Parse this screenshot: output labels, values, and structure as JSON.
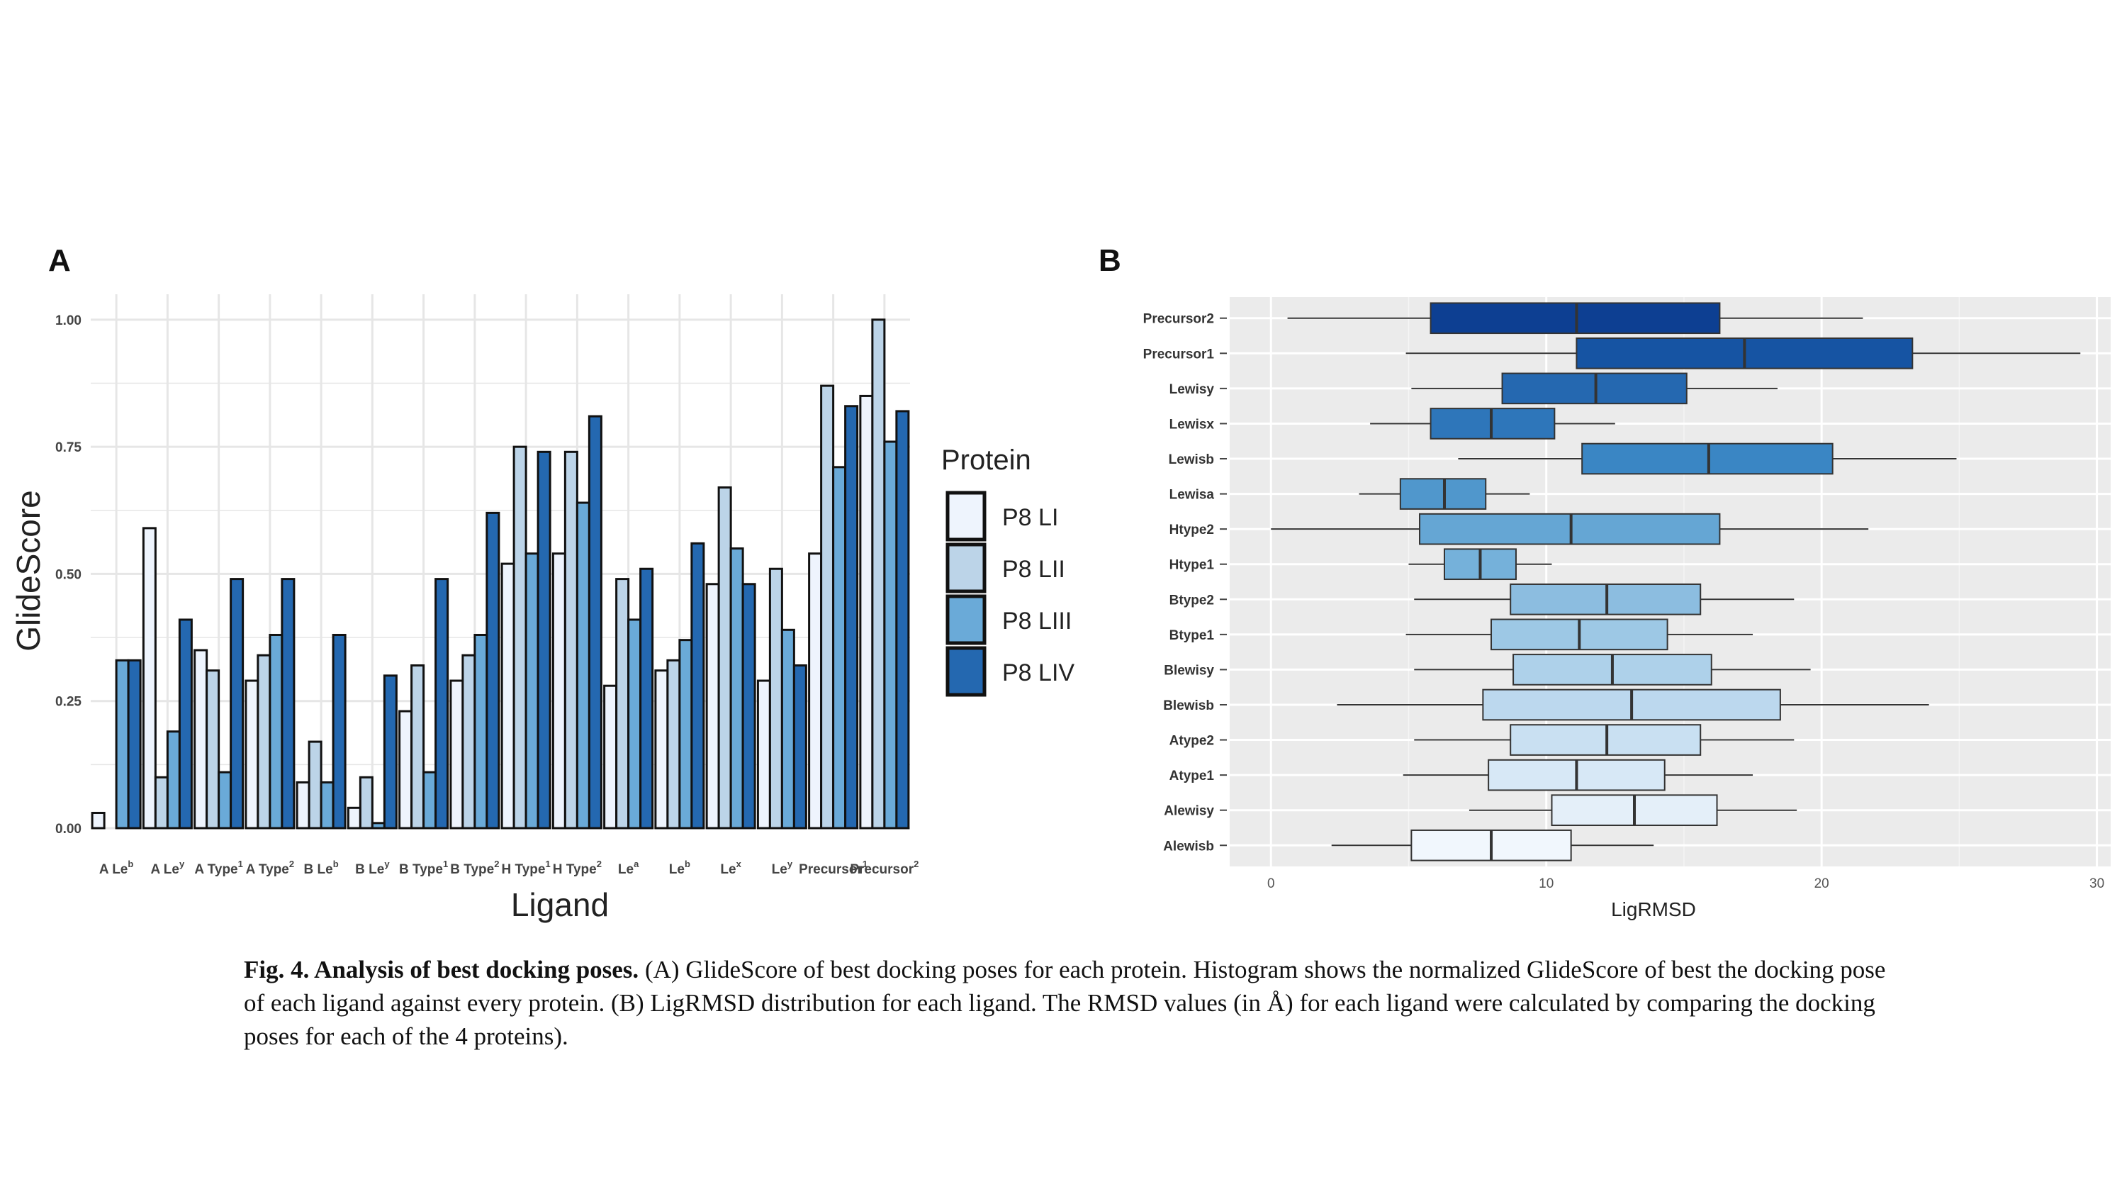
{
  "panels": {
    "a": "A",
    "b": "B"
  },
  "legend": {
    "title": "Protein",
    "items": [
      {
        "label": "P8 LI",
        "color": "#eef4fd"
      },
      {
        "label": "P8 LII",
        "color": "#bcd4e8"
      },
      {
        "label": "P8 LIII",
        "color": "#6aaad8"
      },
      {
        "label": "P8 LIV",
        "color": "#2468b0"
      }
    ]
  },
  "chart_data": [
    {
      "type": "bar",
      "xlabel": "Ligand",
      "ylabel": "GlideScore",
      "ylim": [
        0,
        1.05
      ],
      "yticks": [
        "0.00",
        "0.25",
        "0.50",
        "0.75",
        "1.00"
      ],
      "grid": true,
      "legend_position": "right",
      "categories": [
        {
          "base": "A Le",
          "sup": "b"
        },
        {
          "base": "A Le",
          "sup": "y"
        },
        {
          "base": "A Type",
          "sup": "1"
        },
        {
          "base": "A Type",
          "sup": "2"
        },
        {
          "base": "B Le",
          "sup": "b"
        },
        {
          "base": "B Le",
          "sup": "y"
        },
        {
          "base": "B Type",
          "sup": "1"
        },
        {
          "base": "B Type",
          "sup": "2"
        },
        {
          "base": "H Type",
          "sup": "1"
        },
        {
          "base": "H Type",
          "sup": "2"
        },
        {
          "base": "Le",
          "sup": "a"
        },
        {
          "base": "Le",
          "sup": "b"
        },
        {
          "base": "Le",
          "sup": "x"
        },
        {
          "base": "Le",
          "sup": "y"
        },
        {
          "base": "Precursor",
          "sup": "1"
        },
        {
          "base": "Precursor",
          "sup": "2"
        }
      ],
      "series": [
        {
          "name": "P8 LI",
          "values": [
            0.03,
            0.59,
            0.35,
            0.29,
            0.09,
            0.04,
            0.23,
            0.29,
            0.52,
            0.54,
            0.28,
            0.31,
            0.48,
            0.29,
            0.54,
            0.85
          ]
        },
        {
          "name": "P8 LII",
          "values": [
            0.0,
            0.1,
            0.31,
            0.34,
            0.17,
            0.1,
            0.32,
            0.34,
            0.75,
            0.74,
            0.49,
            0.33,
            0.67,
            0.51,
            0.87,
            1.0
          ]
        },
        {
          "name": "P8 LIII",
          "values": [
            0.33,
            0.19,
            0.11,
            0.38,
            0.09,
            0.01,
            0.11,
            0.38,
            0.54,
            0.64,
            0.41,
            0.37,
            0.55,
            0.39,
            0.71,
            0.76
          ]
        },
        {
          "name": "P8 LIV",
          "values": [
            0.33,
            0.41,
            0.49,
            0.49,
            0.38,
            0.3,
            0.49,
            0.62,
            0.74,
            0.81,
            0.51,
            0.56,
            0.48,
            0.32,
            0.83,
            0.82
          ]
        }
      ]
    },
    {
      "type": "boxplot",
      "xlabel": "LigRMSD",
      "ylabel": "",
      "xlim": [
        -1.5,
        30.5
      ],
      "xticks": [
        "0",
        "10",
        "20",
        "30"
      ],
      "grid": true,
      "categories": [
        "Precursor2",
        "Precursor1",
        "Lewisy",
        "Lewisx",
        "Lewisb",
        "Lewisa",
        "Htype2",
        "Htype1",
        "Btype2",
        "Btype1",
        "Blewisy",
        "Blewisb",
        "Atype2",
        "Atype1",
        "Alewisy",
        "Alewisb"
      ],
      "boxes": [
        {
          "label": "Precursor2",
          "min": 0.6,
          "q1": 5.8,
          "median": 11.1,
          "q3": 16.3,
          "max": 21.5,
          "color": "#0d3f92"
        },
        {
          "label": "Precursor1",
          "min": 4.9,
          "q1": 11.1,
          "median": 17.2,
          "q3": 23.3,
          "max": 29.4,
          "color": "#1654a3"
        },
        {
          "label": "Lewisy",
          "min": 5.1,
          "q1": 8.4,
          "median": 11.8,
          "q3": 15.1,
          "max": 18.4,
          "color": "#2568b0"
        },
        {
          "label": "Lewisx",
          "min": 3.6,
          "q1": 5.8,
          "median": 8.0,
          "q3": 10.3,
          "max": 12.5,
          "color": "#2e76ba"
        },
        {
          "label": "Lewisb",
          "min": 6.8,
          "q1": 11.3,
          "median": 15.9,
          "q3": 20.4,
          "max": 24.9,
          "color": "#3a86c4"
        },
        {
          "label": "Lewisa",
          "min": 3.2,
          "q1": 4.7,
          "median": 6.3,
          "q3": 7.8,
          "max": 9.4,
          "color": "#5097cc"
        },
        {
          "label": "Htype2",
          "min": 0.0,
          "q1": 5.4,
          "median": 10.9,
          "q3": 16.3,
          "max": 21.7,
          "color": "#65a6d4"
        },
        {
          "label": "Htype1",
          "min": 5.0,
          "q1": 6.3,
          "median": 7.6,
          "q3": 8.9,
          "max": 10.2,
          "color": "#75b1da"
        },
        {
          "label": "Btype2",
          "min": 5.2,
          "q1": 8.7,
          "median": 12.2,
          "q3": 15.6,
          "max": 19.0,
          "color": "#8cbde0"
        },
        {
          "label": "Btype1",
          "min": 4.9,
          "q1": 8.0,
          "median": 11.2,
          "q3": 14.4,
          "max": 17.5,
          "color": "#9dc8e5"
        },
        {
          "label": "Blewisy",
          "min": 5.2,
          "q1": 8.8,
          "median": 12.4,
          "q3": 16.0,
          "max": 19.6,
          "color": "#aed1ea"
        },
        {
          "label": "Blewisb",
          "min": 2.4,
          "q1": 7.7,
          "median": 13.1,
          "q3": 18.5,
          "max": 23.9,
          "color": "#bcd8ee"
        },
        {
          "label": "Atype2",
          "min": 5.2,
          "q1": 8.7,
          "median": 12.2,
          "q3": 15.6,
          "max": 19.0,
          "color": "#c9e0f2"
        },
        {
          "label": "Atype1",
          "min": 4.8,
          "q1": 7.9,
          "median": 11.1,
          "q3": 14.3,
          "max": 17.5,
          "color": "#d7e8f6"
        },
        {
          "label": "Alewisy",
          "min": 7.2,
          "q1": 10.2,
          "median": 13.2,
          "q3": 16.2,
          "max": 19.1,
          "color": "#e4eff9"
        },
        {
          "label": "Alewisb",
          "min": 2.2,
          "q1": 5.1,
          "median": 8.0,
          "q3": 10.9,
          "max": 13.9,
          "color": "#f1f7fd"
        }
      ]
    }
  ],
  "caption": {
    "bold": "Fig. 4.  Analysis of best docking poses.",
    "text": " (A) GlideScore of best docking poses for each protein. Histogram shows the normalized GlideScore of best the docking pose of each ligand against every protein. (B) LigRMSD distribution for each ligand. The RMSD values (in Å) for each ligand were calculated by comparing the docking poses for each of the 4 proteins)."
  }
}
